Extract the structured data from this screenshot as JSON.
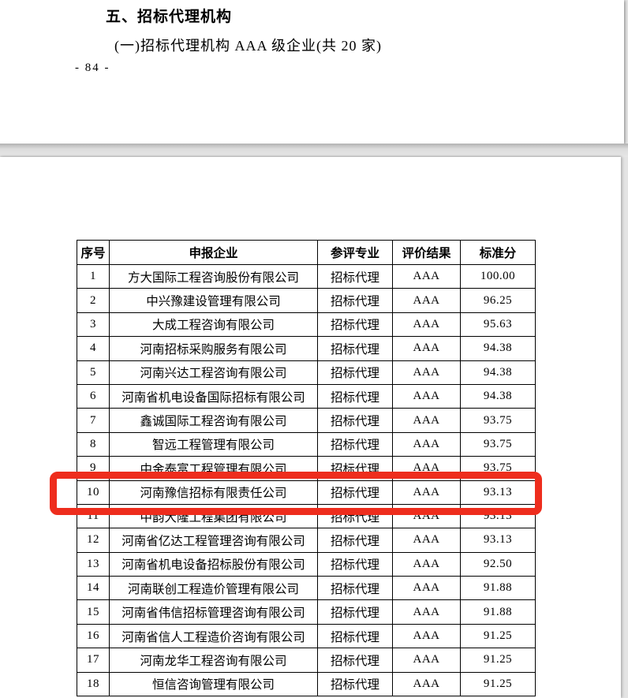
{
  "doc": {
    "heading": "五、招标代理机构",
    "subheading": "(一)招标代理机构 AAA 级企业(共 20 家)",
    "page_number": "- 84 -"
  },
  "table": {
    "headers": [
      "序号",
      "申报企业",
      "参评专业",
      "评价结果",
      "标准分"
    ],
    "rows": [
      {
        "no": "1",
        "company": "方大国际工程咨询股份有限公司",
        "specialty": "招标代理",
        "result": "AAA",
        "score": "100.00"
      },
      {
        "no": "2",
        "company": "中兴豫建设管理有限公司",
        "specialty": "招标代理",
        "result": "AAA",
        "score": "96.25"
      },
      {
        "no": "3",
        "company": "大成工程咨询有限公司",
        "specialty": "招标代理",
        "result": "AAA",
        "score": "95.63"
      },
      {
        "no": "4",
        "company": "河南招标采购服务有限公司",
        "specialty": "招标代理",
        "result": "AAA",
        "score": "94.38"
      },
      {
        "no": "5",
        "company": "河南兴达工程咨询有限公司",
        "specialty": "招标代理",
        "result": "AAA",
        "score": "94.38"
      },
      {
        "no": "6",
        "company": "河南省机电设备国际招标有限公司",
        "specialty": "招标代理",
        "result": "AAA",
        "score": "94.38"
      },
      {
        "no": "7",
        "company": "鑫诚国际工程咨询有限公司",
        "specialty": "招标代理",
        "result": "AAA",
        "score": "93.75"
      },
      {
        "no": "8",
        "company": "智远工程管理有限公司",
        "specialty": "招标代理",
        "result": "AAA",
        "score": "93.75"
      },
      {
        "no": "9",
        "company": "中金泰富工程管理有限公司",
        "specialty": "招标代理",
        "result": "AAA",
        "score": "93.75"
      },
      {
        "no": "10",
        "company": "河南豫信招标有限责任公司",
        "specialty": "招标代理",
        "result": "AAA",
        "score": "93.13"
      },
      {
        "no": "11",
        "company": "中韵大隆工程集团有限公司",
        "specialty": "招标代理",
        "result": "AAA",
        "score": "93.13"
      },
      {
        "no": "12",
        "company": "河南省亿达工程管理咨询有限公司",
        "specialty": "招标代理",
        "result": "AAA",
        "score": "93.13"
      },
      {
        "no": "13",
        "company": "河南省机电设备招标股份有限公司",
        "specialty": "招标代理",
        "result": "AAA",
        "score": "92.50"
      },
      {
        "no": "14",
        "company": "河南联创工程造价管理有限公司",
        "specialty": "招标代理",
        "result": "AAA",
        "score": "91.88"
      },
      {
        "no": "15",
        "company": "河南省伟信招标管理咨询有限公司",
        "specialty": "招标代理",
        "result": "AAA",
        "score": "91.88"
      },
      {
        "no": "16",
        "company": "河南省信人工程造价咨询有限公司",
        "specialty": "招标代理",
        "result": "AAA",
        "score": "91.25"
      },
      {
        "no": "17",
        "company": "河南龙华工程咨询有限公司",
        "specialty": "招标代理",
        "result": "AAA",
        "score": "91.25"
      },
      {
        "no": "18",
        "company": "恒信咨询管理有限公司",
        "specialty": "招标代理",
        "result": "AAA",
        "score": "91.25"
      }
    ]
  },
  "annotation": {
    "highlighted_row_no": "10",
    "highlight_color": "#ee2d1d"
  }
}
